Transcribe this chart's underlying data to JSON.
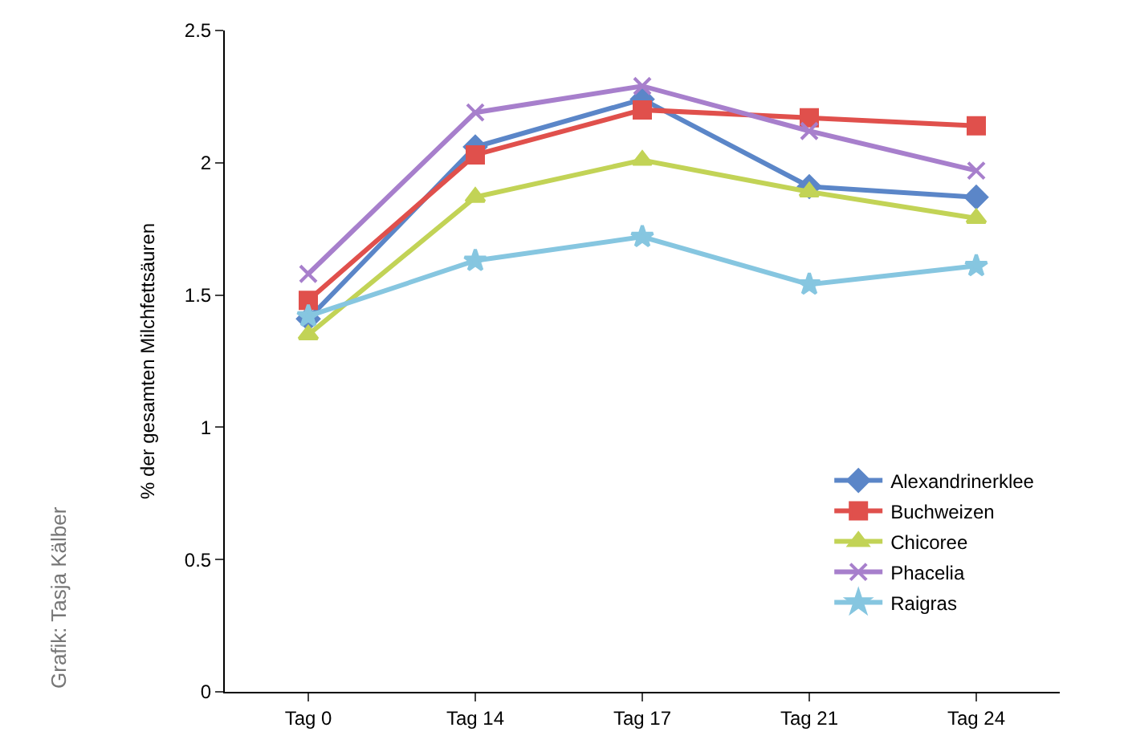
{
  "chart_data": {
    "type": "line",
    "ylabel": "% der gesamten Milchfettsäuren",
    "categories": [
      "Tag 0",
      "Tag 14",
      "Tag 17",
      "Tag 21",
      "Tag 24"
    ],
    "series": [
      {
        "name": "Alexandrinerklee",
        "color": "#5b86c8",
        "marker": "diamond",
        "values": [
          1.41,
          2.06,
          2.24,
          1.91,
          1.87
        ]
      },
      {
        "name": "Buchweizen",
        "color": "#e0504c",
        "marker": "square",
        "values": [
          1.48,
          2.03,
          2.2,
          2.17,
          2.14
        ]
      },
      {
        "name": "Chicoree",
        "color": "#c2d356",
        "marker": "triangle",
        "values": [
          1.35,
          1.87,
          2.01,
          1.89,
          1.79
        ]
      },
      {
        "name": "Phacelia",
        "color": "#a77fcc",
        "marker": "cross",
        "values": [
          1.58,
          2.19,
          2.29,
          2.12,
          1.97
        ]
      },
      {
        "name": "Raigras",
        "color": "#86c6e0",
        "marker": "star",
        "values": [
          1.42,
          1.63,
          1.72,
          1.54,
          1.61
        ]
      }
    ],
    "ylim": [
      0,
      2.5
    ],
    "yticks": [
      0,
      0.5,
      1,
      1.5,
      2,
      2.5
    ],
    "legend": "bottom right",
    "annotations": [
      "Grafik: Tasja Kälber"
    ]
  }
}
